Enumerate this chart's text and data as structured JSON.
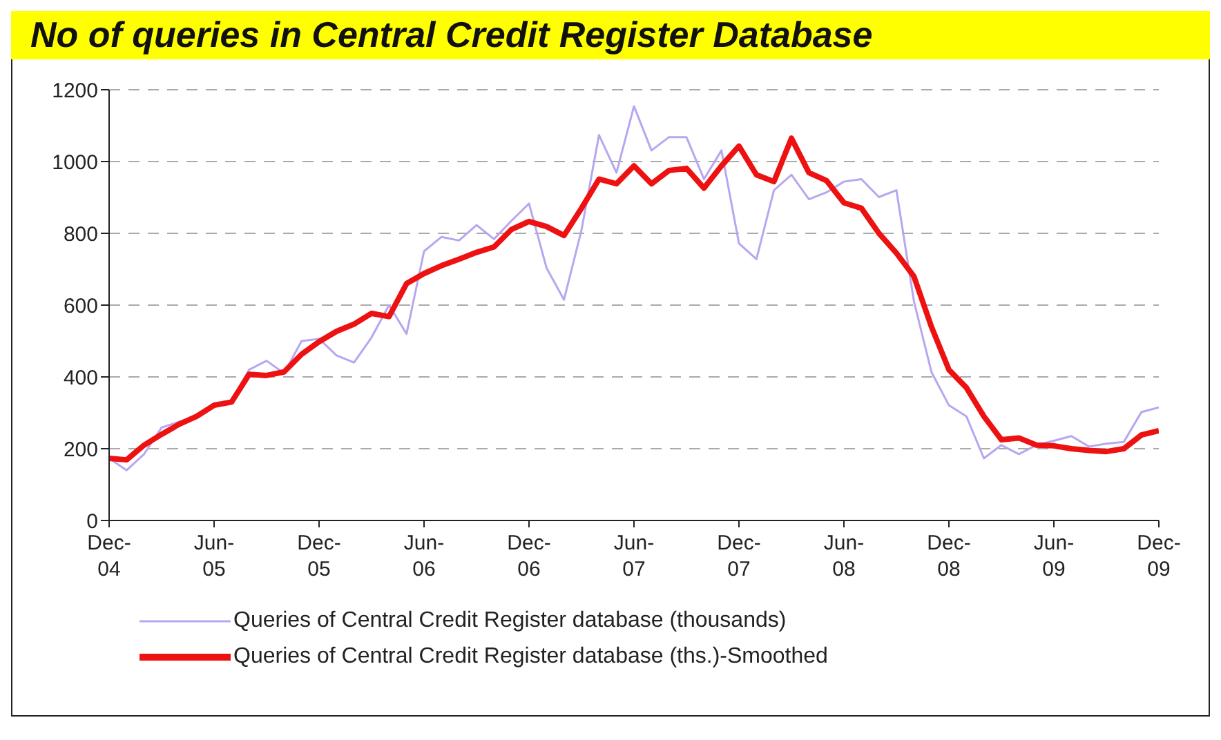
{
  "chart_data": {
    "type": "line",
    "title": "No of queries in Central Credit Register Database",
    "categories": [
      "Dec-04",
      null,
      null,
      null,
      null,
      null,
      "Jun-05",
      null,
      null,
      null,
      null,
      null,
      "Dec-05",
      null,
      null,
      null,
      null,
      null,
      "Jun-06",
      null,
      null,
      null,
      null,
      null,
      "Dec-06",
      null,
      null,
      null,
      null,
      null,
      "Jun-07",
      null,
      null,
      null,
      null,
      null,
      "Dec-07",
      null,
      null,
      null,
      null,
      null,
      "Jun-08",
      null,
      null,
      null,
      null,
      null,
      "Dec-08",
      null,
      null,
      null,
      null,
      null,
      "Jun-09",
      null,
      null,
      null,
      null,
      null,
      "Dec-09"
    ],
    "series": [
      {
        "name": "Queries of Central Credit Register database (thousands)",
        "color": "#b9a6f0",
        "values": [
          173,
          140,
          185,
          259,
          275,
          290,
          327,
          333,
          420,
          445,
          410,
          500,
          506,
          460,
          440,
          510,
          600,
          520,
          750,
          790,
          780,
          823,
          784,
          835,
          883,
          704,
          615,
          809,
          1074,
          969,
          1154,
          1031,
          1068,
          1068,
          951,
          1031,
          772,
          728,
          920,
          963,
          895,
          914,
          944,
          951,
          901,
          920,
          611,
          414,
          321,
          290,
          173,
          210,
          185,
          210,
          222,
          235,
          206,
          214,
          219,
          302,
          315
        ]
      },
      {
        "name": "Queries of Central Credit Register database (ths.)-Smoothed",
        "color": "#ee1111",
        "values": [
          173,
          169,
          210,
          240,
          268,
          290,
          321,
          330,
          407,
          404,
          414,
          463,
          498,
          527,
          547,
          577,
          568,
          660,
          688,
          710,
          728,
          747,
          762,
          811,
          833,
          819,
          794,
          870,
          951,
          938,
          988,
          938,
          975,
          981,
          926,
          988,
          1043,
          963,
          944,
          1065,
          969,
          947,
          885,
          870,
          800,
          745,
          680,
          540,
          420,
          370,
          290,
          225,
          230,
          210,
          208,
          200,
          195,
          192,
          200,
          238,
          250
        ]
      }
    ],
    "ylim": [
      0,
      1200
    ],
    "yticks": [
      0,
      200,
      400,
      600,
      800,
      1000,
      1200
    ],
    "grid": "y",
    "legend": "bottom"
  }
}
